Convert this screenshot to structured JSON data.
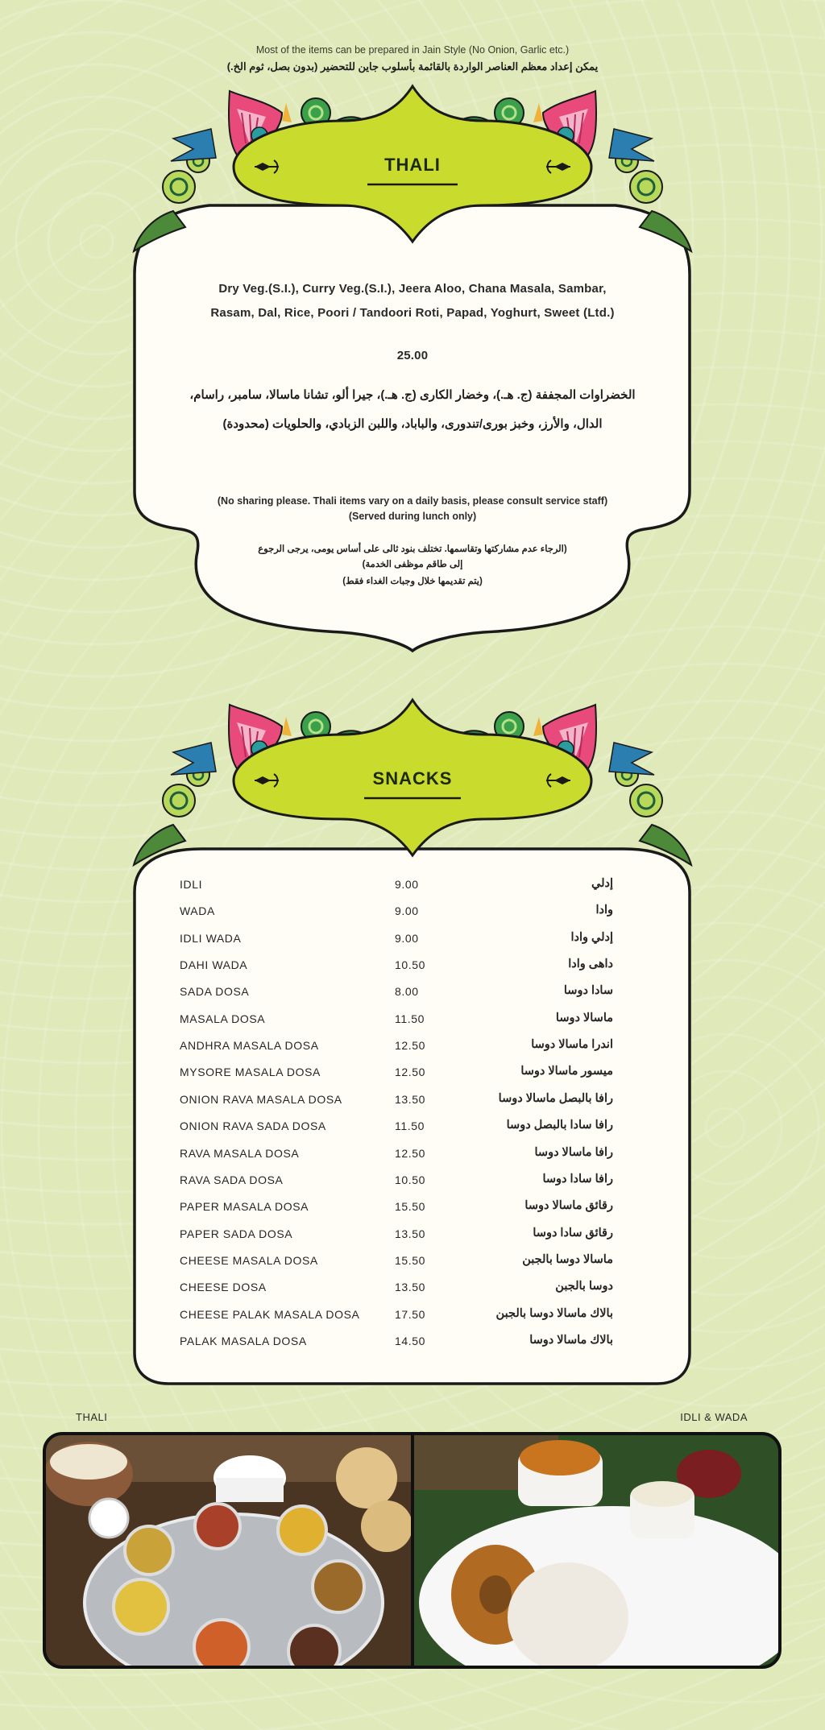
{
  "jain_note": {
    "en": "Most of the items can be prepared in Jain Style (No Onion, Garlic etc.)",
    "ar": "يمكن إعداد معظم العناصر الواردة بالقائمة بأسلوب جاين للتحضير (بدون بصل، ثوم الخ.)"
  },
  "thali": {
    "title": "THALI",
    "description": [
      "Dry Veg.(S.I.), Curry Veg.(S.I.), Jeera Aloo, Chana Masala, Sambar,",
      "Rasam, Dal, Rice, Poori / Tandoori Roti, Papad, Yoghurt, Sweet (Ltd.)"
    ],
    "price": "25.00",
    "description_ar": [
      "الخضراوات المجففة (ج. هـ.)، وخضار الكارى (ج. هـ.)، جيرا ألو، تشانا ماسالا، سامبر، راسام،",
      "الدال، والأرز، وخبز بورى/تندورى، والباباد، واللبن الزبادي، والحلويات (محدودة)"
    ],
    "notes": [
      "(No sharing please. Thali items vary on a daily basis, please consult service staff)",
      "(Served during lunch only)"
    ],
    "notes_ar": [
      "(الرجاء عدم مشاركتها وتقاسمها. تختلف بنود ثالى على أساس يومى، يرجى الرجوع",
      "إلى طاقم موظفى الخدمة)",
      "(يتم تقديمها خلال وجبات الغداء فقط)"
    ]
  },
  "snacks": {
    "title": "SNACKS",
    "items": [
      {
        "name": "IDLI",
        "price": "9.00",
        "name_ar": "إدلي"
      },
      {
        "name": "WADA",
        "price": "9.00",
        "name_ar": "وادا"
      },
      {
        "name": "IDLI WADA",
        "price": "9.00",
        "name_ar": "إدلي وادا"
      },
      {
        "name": "DAHI WADA",
        "price": "10.50",
        "name_ar": "داهى وادا"
      },
      {
        "name": "SADA DOSA",
        "price": "8.00",
        "name_ar": "سادا دوسا"
      },
      {
        "name": "MASALA DOSA",
        "price": "11.50",
        "name_ar": "ماسالا دوسا"
      },
      {
        "name": "ANDHRA MASALA DOSA",
        "price": "12.50",
        "name_ar": "اندرا ماسالا دوسا"
      },
      {
        "name": "MYSORE MASALA DOSA",
        "price": "12.50",
        "name_ar": "ميسور ماسالا دوسا"
      },
      {
        "name": "ONION RAVA MASALA DOSA",
        "price": "13.50",
        "name_ar": "رافا بالبصل ماسالا دوسا"
      },
      {
        "name": "ONION RAVA SADA DOSA",
        "price": "11.50",
        "name_ar": "رافا سادا بالبصل دوسا"
      },
      {
        "name": "RAVA MASALA DOSA",
        "price": "12.50",
        "name_ar": "رافا ماسالا دوسا"
      },
      {
        "name": "RAVA SADA DOSA",
        "price": "10.50",
        "name_ar": "رافا سادا دوسا"
      },
      {
        "name": "PAPER MASALA DOSA",
        "price": "15.50",
        "name_ar": "رقائق ماسالا دوسا"
      },
      {
        "name": "PAPER SADA DOSA",
        "price": "13.50",
        "name_ar": "رقائق سادا دوسا"
      },
      {
        "name": "CHEESE MASALA DOSA",
        "price": "15.50",
        "name_ar": "ماسالا دوسا بالجبن"
      },
      {
        "name": "CHEESE DOSA",
        "price": "13.50",
        "name_ar": "دوسا بالجبن"
      },
      {
        "name": "CHEESE PALAK MASALA DOSA",
        "price": "17.50",
        "name_ar": "بالاك ماسالا دوسا بالجبن"
      },
      {
        "name": "PALAK MASALA DOSA",
        "price": "14.50",
        "name_ar": "بالاك ماسالا دوسا"
      }
    ]
  },
  "photos": {
    "left_label": "THALI",
    "right_label": "IDLI & WADA"
  },
  "colors": {
    "background": "#dfe9b9",
    "badge_green": "#c9dc2e",
    "card": "#fffdf6",
    "flower_pink": "#e84a7c",
    "leaf_blue": "#2b7fb0",
    "swirl_green": "#3aa04a"
  },
  "icons": [
    "lotus-ornament-icon",
    "swirl-ornament-icon",
    "arrow-flourish-icon"
  ]
}
